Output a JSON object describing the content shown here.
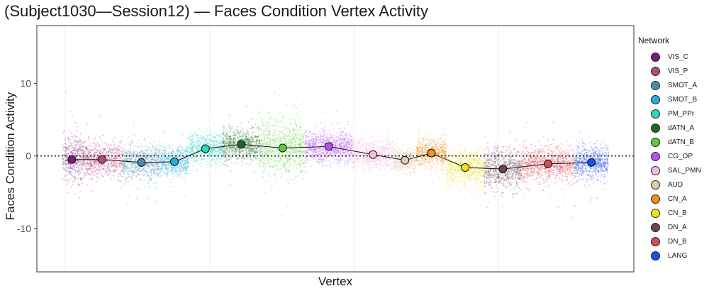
{
  "chart_data": {
    "type": "scatter",
    "title": "(Subject1030—Session12) — Faces Condition Vertex Activity",
    "xlabel": "Vertex",
    "ylabel": "Faces Condition Activity",
    "ylim": [
      -16,
      18
    ],
    "yticks": [
      -10,
      0,
      10
    ],
    "ytick_labels": [
      "-10",
      "0",
      "10"
    ],
    "grid": true,
    "reference_line": 0,
    "legend": {
      "title": "Network",
      "position": "right"
    },
    "series": [
      {
        "name": "VIS_C",
        "color": "#7B1A7D",
        "mean": -0.5,
        "spread": 3.0
      },
      {
        "name": "VIS_P",
        "color": "#B5487E",
        "mean": -0.5,
        "spread": 2.2
      },
      {
        "name": "SMOT_A",
        "color": "#4A8BB0",
        "mean": -0.9,
        "spread": 2.2
      },
      {
        "name": "SMOT_B",
        "color": "#26ACE0",
        "mean": -0.8,
        "spread": 1.8
      },
      {
        "name": "PM_PPr",
        "color": "#2ED6C4",
        "mean": 1.0,
        "spread": 1.8
      },
      {
        "name": "dATN_A",
        "color": "#1A6B24",
        "mean": 1.6,
        "spread": 2.0
      },
      {
        "name": "dATN_B",
        "color": "#5CCB3B",
        "mean": 1.1,
        "spread": 3.5
      },
      {
        "name": "CG_OP",
        "color": "#B84FF2",
        "mean": 1.3,
        "spread": 2.0
      },
      {
        "name": "SAL_PMN",
        "color": "#F7B8E3",
        "mean": 0.2,
        "spread": 2.0
      },
      {
        "name": "AUD",
        "color": "#E3C9A8",
        "mean": -0.6,
        "spread": 1.6
      },
      {
        "name": "CN_A",
        "color": "#F0901E",
        "mean": 0.4,
        "spread": 1.9
      },
      {
        "name": "CN_B",
        "color": "#EEE21B",
        "mean": -1.6,
        "spread": 2.2
      },
      {
        "name": "DN_A",
        "color": "#6E4352",
        "mean": -1.8,
        "spread": 2.5
      },
      {
        "name": "DN_B",
        "color": "#D44B56",
        "mean": -1.1,
        "spread": 2.3
      },
      {
        "name": "LANG",
        "color": "#1E4CF0",
        "mean": -0.9,
        "spread": 2.0
      }
    ]
  }
}
